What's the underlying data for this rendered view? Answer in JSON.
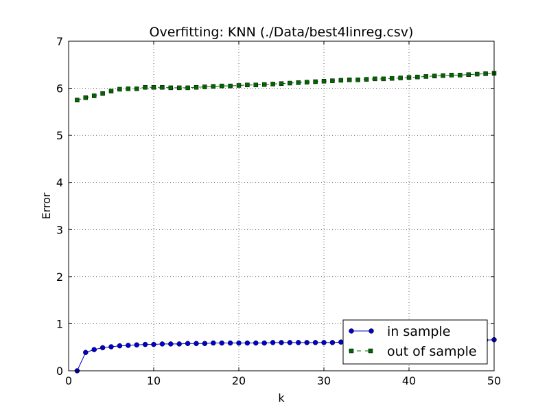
{
  "chart_data": {
    "type": "line",
    "title": "Overfitting: KNN (./Data/best4linreg.csv)",
    "xlabel": "k",
    "ylabel": "Error",
    "xlim": [
      0,
      50
    ],
    "ylim": [
      0,
      7
    ],
    "xticks": [
      "0",
      "10",
      "20",
      "30",
      "40",
      "50"
    ],
    "yticks": [
      "0",
      "1",
      "2",
      "3",
      "4",
      "5",
      "6",
      "7"
    ],
    "grid": true,
    "legend_position": "lower-right",
    "x": [
      1,
      2,
      3,
      4,
      5,
      6,
      7,
      8,
      9,
      10,
      11,
      12,
      13,
      14,
      15,
      16,
      17,
      18,
      19,
      20,
      21,
      22,
      23,
      24,
      25,
      26,
      27,
      28,
      29,
      30,
      31,
      32,
      33,
      34,
      35,
      36,
      37,
      38,
      39,
      40,
      41,
      42,
      43,
      44,
      45,
      46,
      47,
      48,
      49,
      50
    ],
    "series": [
      {
        "name": "in sample",
        "color": "#0000cc",
        "marker": "circle",
        "linestyle": "solid",
        "values": [
          0.0,
          0.39,
          0.45,
          0.49,
          0.51,
          0.53,
          0.54,
          0.55,
          0.56,
          0.56,
          0.57,
          0.57,
          0.57,
          0.58,
          0.58,
          0.58,
          0.59,
          0.59,
          0.59,
          0.59,
          0.59,
          0.59,
          0.59,
          0.6,
          0.6,
          0.6,
          0.6,
          0.6,
          0.6,
          0.6,
          0.6,
          0.61,
          0.61,
          0.61,
          0.61,
          0.61,
          0.61,
          0.61,
          0.62,
          0.62,
          0.62,
          0.62,
          0.62,
          0.63,
          0.63,
          0.63,
          0.64,
          0.64,
          0.65,
          0.66
        ]
      },
      {
        "name": "out of sample",
        "color": "#006600",
        "marker": "square",
        "linestyle": "dashed",
        "values": [
          5.75,
          5.8,
          5.84,
          5.89,
          5.94,
          5.98,
          5.99,
          5.99,
          6.02,
          6.02,
          6.02,
          6.01,
          6.01,
          6.01,
          6.02,
          6.03,
          6.04,
          6.05,
          6.05,
          6.06,
          6.07,
          6.07,
          6.08,
          6.09,
          6.1,
          6.11,
          6.12,
          6.13,
          6.14,
          6.15,
          6.16,
          6.17,
          6.18,
          6.18,
          6.19,
          6.2,
          6.2,
          6.21,
          6.22,
          6.23,
          6.24,
          6.25,
          6.26,
          6.27,
          6.28,
          6.28,
          6.29,
          6.3,
          6.31,
          6.32
        ]
      }
    ]
  }
}
